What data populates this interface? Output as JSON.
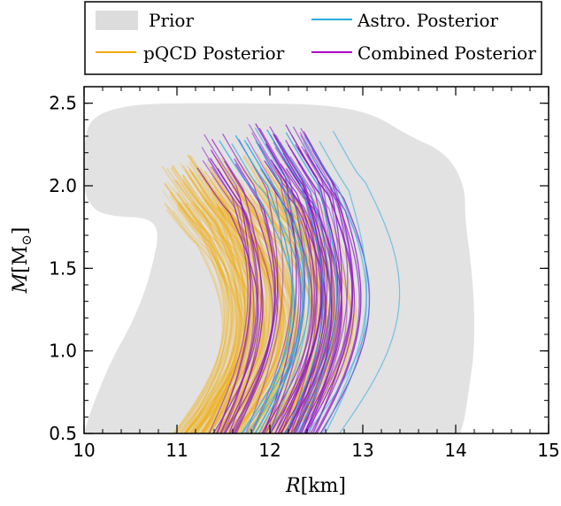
{
  "chart_data": {
    "type": "line",
    "xlabel_main": "R",
    "xlabel_unit": "[km]",
    "ylabel_main": "M",
    "ylabel_unit_open": "[M",
    "ylabel_unit_sub": "⊙",
    "ylabel_unit_close": "]",
    "xlim": [
      10,
      15
    ],
    "ylim": [
      0.5,
      2.6
    ],
    "xticks": [
      "10",
      "11",
      "12",
      "13",
      "14",
      "15"
    ],
    "xtick_values": [
      10,
      11,
      12,
      13,
      14,
      15
    ],
    "yticks": [
      "0.5",
      "1.0",
      "1.5",
      "2.0",
      "2.5"
    ],
    "ytick_values": [
      0.5,
      1.0,
      1.5,
      2.0,
      2.5
    ],
    "legend": {
      "placement": "top, above plot",
      "entries": [
        {
          "label": "Prior",
          "kind": "patch",
          "color": "#dcdcdc"
        },
        {
          "label": "Astro. Posterior",
          "kind": "line",
          "color": "#29abe2"
        },
        {
          "label": "pQCD Posterior",
          "kind": "line",
          "color": "#f2a900"
        },
        {
          "label": "Combined Posterior",
          "kind": "line",
          "color": "#b000c8"
        }
      ]
    },
    "prior_region": {
      "color": "#e2e2e2",
      "outline_R": [
        10.0,
        10.05,
        10.15,
        10.3,
        10.5,
        10.65,
        10.75,
        10.8,
        10.75,
        10.6,
        10.45,
        10.3,
        10.15,
        10.05,
        10.0,
        10.0,
        10.1,
        10.4,
        10.8,
        11.4,
        12.0,
        12.6,
        13.1,
        13.5,
        13.9,
        14.1,
        14.1,
        14.15,
        14.2,
        14.2,
        14.15,
        14.1,
        14.05
      ],
      "outline_M": [
        0.5,
        0.6,
        0.75,
        0.95,
        1.15,
        1.35,
        1.55,
        1.7,
        1.78,
        1.81,
        1.81,
        1.82,
        1.84,
        1.9,
        1.98,
        2.3,
        2.42,
        2.48,
        2.5,
        2.5,
        2.5,
        2.49,
        2.44,
        2.3,
        2.2,
        2.0,
        1.8,
        1.6,
        1.3,
        1.0,
        0.8,
        0.6,
        0.5
      ]
    },
    "series": [
      {
        "color": "#f2a900",
        "bottom_R_range": [
          10.9,
          12.2
        ],
        "middle_R_shift": 0.5,
        "top_M_range": [
          1.85,
          2.2
        ],
        "count": 160
      },
      {
        "color": "#8a19c8",
        "bottom_R_range": [
          11.3,
          12.5
        ],
        "middle_R_shift": 0.35,
        "top_M_range": [
          2.1,
          2.38
        ],
        "count": 60
      },
      {
        "color": "#29abe2",
        "bottom_R_range": [
          11.6,
          12.7
        ],
        "middle_R_shift": 0.45,
        "top_M_range": [
          2.25,
          2.36
        ],
        "count": 14
      }
    ]
  }
}
